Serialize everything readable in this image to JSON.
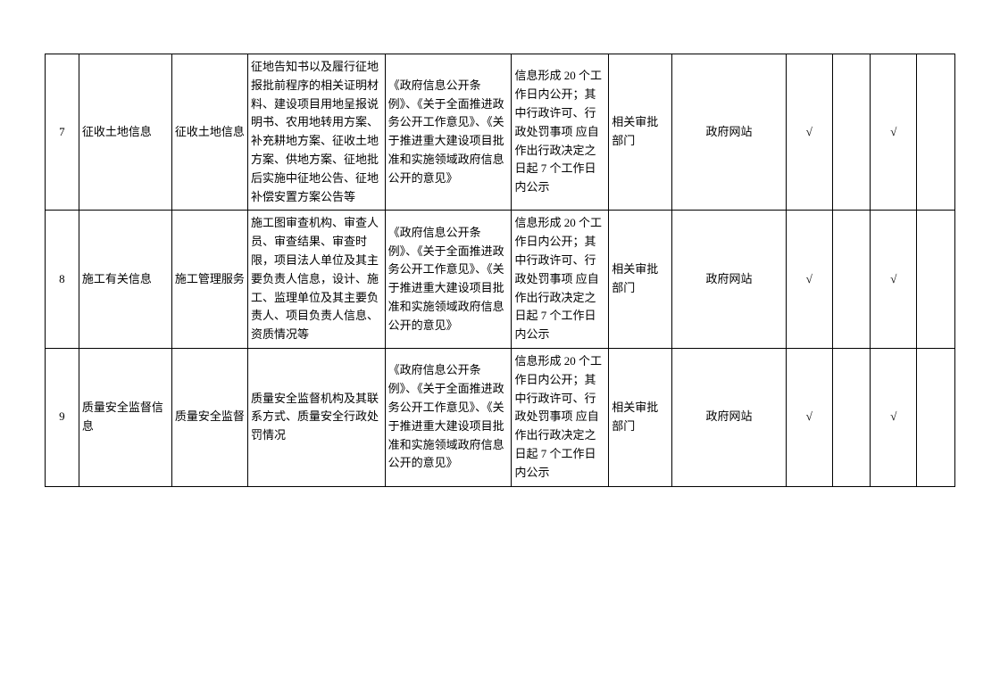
{
  "check": "√",
  "rows": [
    {
      "num": "7",
      "cat": "征收土地信息",
      "sub": "征收土地信息",
      "content": "征地告知书以及履行征地报批前程序的相关证明材料、建设项目用地呈报说明书、农用地转用方案、补充耕地方案、征收土地方案、供地方案、征地批后实施中征地公告、征地补偿安置方案公告等",
      "basis": "《政府信息公开条例》、《关于全面推进政务公开工作意见》、《关于推进重大建设项目批准和实施领域政府信息公开的意见》",
      "time": "信息形成 20 个工作日内公开；其中行政许可、行政处罚事项 应自作出行政决定之日起 7 个工作日内公示",
      "dept": "相关审批部门",
      "chan": "政府网站"
    },
    {
      "num": "8",
      "cat": "施工有关信息",
      "sub": "施工管理服务",
      "content": "施工图审查机构、审查人员、审查结果、审查时限，项目法人单位及其主要负责人信息，设计、施工、监理单位及其主要负责人、项目负责人信息、资质情况等",
      "basis": "《政府信息公开条例》、《关于全面推进政务公开工作意见》、《关于推进重大建设项目批准和实施领域政府信息公开的意见》",
      "time": "信息形成 20 个工作日内公开；其中行政许可、行政处罚事项 应自作出行政决定之日起 7 个工作日内公示",
      "dept": "相关审批部门",
      "chan": "政府网站"
    },
    {
      "num": "9",
      "cat": "质量安全监督信息",
      "sub": "质量安全监督",
      "content": "质量安全监督机构及其联系方式、质量安全行政处罚情况",
      "basis": "《政府信息公开条例》、《关于全面推进政务公开工作意见》、《关于推进重大建设项目批准和实施领域政府信息公开的意见》",
      "time": "信息形成 20 个工作日内公开；其中行政许可、行政处罚事项 应自作出行政决定之日起 7 个工作日内公示",
      "dept": "相关审批部门",
      "chan": "政府网站"
    }
  ]
}
